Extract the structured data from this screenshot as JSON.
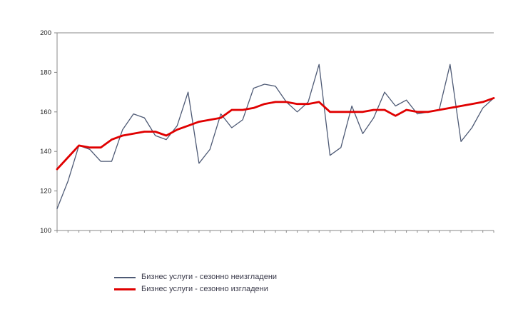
{
  "chart_data": {
    "type": "line",
    "title": "",
    "xlabel": "",
    "ylabel": "",
    "ylim": [
      100,
      200
    ],
    "yticks": [
      100,
      120,
      140,
      160,
      180,
      200
    ],
    "x_points": 41,
    "grid": "top-border-line-only",
    "legend_position": "bottom-left",
    "axis_color": "#888888",
    "series": [
      {
        "name": "Бизнес услуги  - сезонно неизгладени",
        "color": "#4e5a75",
        "width": 1.3,
        "values": [
          111,
          125,
          143,
          141,
          135,
          135,
          151,
          159,
          157,
          148,
          146,
          153,
          170,
          134,
          141,
          159,
          152,
          156,
          172,
          174,
          173,
          165,
          160,
          165,
          184,
          138,
          142,
          163,
          149,
          157,
          170,
          163,
          166,
          159,
          160,
          161,
          184,
          145,
          152,
          162,
          167
        ]
      },
      {
        "name": "Бизнес услуги  - сезонно изгладени",
        "color": "#e00000",
        "width": 2.8,
        "values": [
          131,
          137,
          143,
          142,
          142,
          146,
          148,
          149,
          150,
          150,
          148,
          151,
          153,
          155,
          156,
          157,
          161,
          161,
          162,
          164,
          165,
          165,
          164,
          164,
          165,
          160,
          160,
          160,
          160,
          161,
          161,
          158,
          161,
          160,
          160,
          161,
          162,
          163,
          164,
          165,
          167
        ]
      }
    ]
  }
}
